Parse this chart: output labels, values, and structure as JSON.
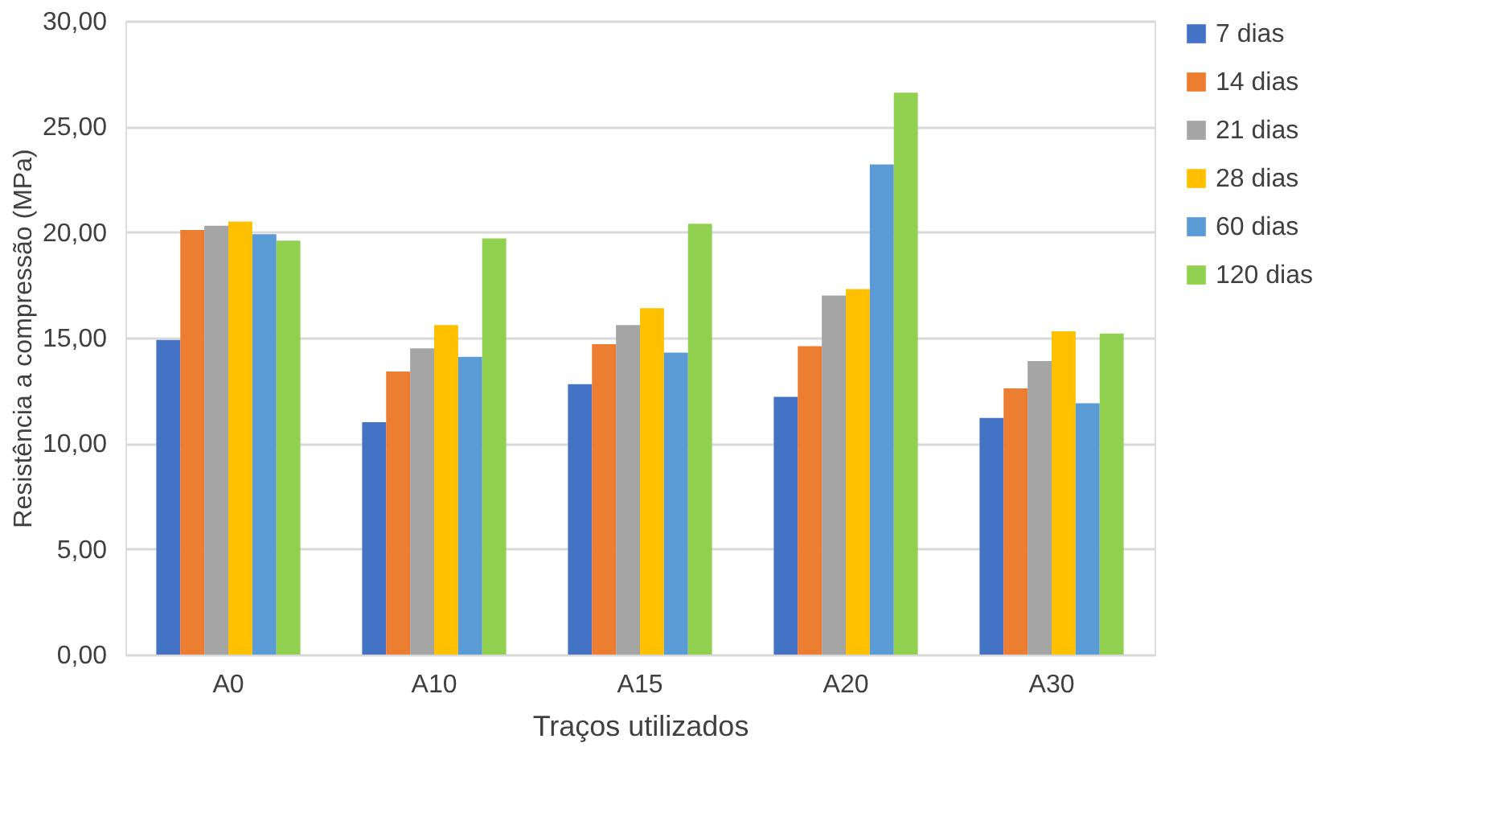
{
  "chart_data": {
    "type": "bar",
    "xlabel": "Traços utilizados",
    "ylabel": "Resistência a compressão (MPa)",
    "categories": [
      "A0",
      "A10",
      "A15",
      "A20",
      "A30"
    ],
    "series": [
      {
        "name": "7 dias",
        "color": "#4472c4",
        "values": [
          14.9,
          11.0,
          12.8,
          12.2,
          11.2
        ]
      },
      {
        "name": "14 dias",
        "color": "#ed7d31",
        "values": [
          20.1,
          13.4,
          14.7,
          14.6,
          12.6
        ]
      },
      {
        "name": "21 dias",
        "color": "#a5a5a5",
        "values": [
          20.3,
          14.5,
          15.6,
          17.0,
          13.9
        ]
      },
      {
        "name": "28 dias",
        "color": "#ffc000",
        "values": [
          20.5,
          15.6,
          16.4,
          17.3,
          15.3
        ]
      },
      {
        "name": "60 dias",
        "color": "#5b9bd5",
        "values": [
          19.9,
          14.1,
          14.3,
          23.2,
          11.9
        ]
      },
      {
        "name": "120 dias",
        "color": "#92d050",
        "values": [
          19.6,
          19.7,
          20.4,
          26.6,
          15.2
        ]
      }
    ],
    "ylim": [
      0,
      30
    ],
    "yticks": [
      {
        "value": 0,
        "label": "0,00"
      },
      {
        "value": 5,
        "label": "5,00"
      },
      {
        "value": 10,
        "label": "10,00"
      },
      {
        "value": 15,
        "label": "15,00"
      },
      {
        "value": 20,
        "label": "20,00"
      },
      {
        "value": 25,
        "label": "25,00"
      },
      {
        "value": 30,
        "label": "30,00"
      }
    ],
    "grid": "y",
    "legend": "right"
  }
}
